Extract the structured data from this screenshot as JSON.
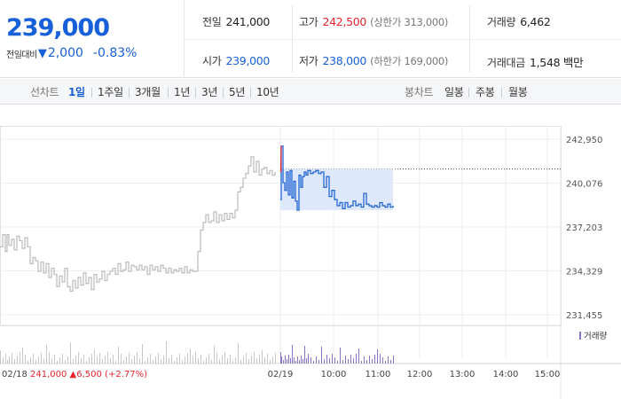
{
  "quote": {
    "price": "239,000",
    "change_label": "전일대비",
    "change_arrow": "▼",
    "change_amount": "2,000",
    "change_rate": "-0.83%",
    "prev_close_label": "전일",
    "prev_close": "241,000",
    "open_label": "시가",
    "open": "239,000",
    "high_label": "고가",
    "high": "242,500",
    "upper_limit": "(상한가 313,000)",
    "low_label": "저가",
    "low": "238,000",
    "lower_limit": "(하한가 169,000)",
    "volume_label": "거래량",
    "volume": "6,462",
    "trade_value_label": "거래대금",
    "trade_value": "1,548 백만"
  },
  "toolbar": {
    "line_chart_label": "선차트",
    "periods": [
      "1일",
      "1주일",
      "3개월",
      "1년",
      "3년",
      "5년",
      "10년"
    ],
    "active_period": "1일",
    "candle_chart_label": "봉차트",
    "candle_periods": [
      "일봉",
      "주봉",
      "월봉"
    ]
  },
  "colors": {
    "accent": "#1760d9",
    "up": "#e8242c",
    "down": "#1760d9",
    "prev_day_line": "#bbbbbb",
    "today_line": "#2566d4",
    "band_fill": "#dde9fa"
  },
  "chart_data": {
    "type": "line",
    "ylim": [
      231455,
      242950
    ],
    "y_ticks": [
      "242,950",
      "240,076",
      "237,203",
      "234,329",
      "231,455"
    ],
    "x_ticks": [
      "02/19",
      "10:00",
      "11:00",
      "12:00",
      "13:00",
      "14:00",
      "15:00"
    ],
    "prev_day_label": "02/18",
    "prev_day_close": "241,000",
    "prev_day_change_arrow": "▲",
    "prev_day_change": "6,500",
    "prev_day_change_rate": "(+2.77%)",
    "volume_legend": "거래량",
    "reference_line": 241000,
    "series": [
      {
        "x": [
          0,
          3,
          6,
          8,
          10,
          13,
          16,
          19,
          22,
          25,
          28,
          31,
          34,
          37,
          40,
          43,
          46,
          49,
          52,
          55,
          58,
          61,
          64,
          67,
          70,
          73,
          76,
          79,
          82,
          85,
          88,
          91,
          94,
          97,
          100,
          103,
          106,
          109,
          112,
          115,
          118,
          121,
          124,
          127,
          130,
          133,
          136,
          139,
          142,
          145,
          148,
          151,
          154,
          157,
          160,
          163,
          166,
          169,
          172,
          175,
          178,
          181,
          184,
          187,
          190,
          193,
          196,
          199,
          202,
          205,
          208,
          211,
          214,
          217,
          220,
          223,
          226,
          229,
          232,
          235,
          238,
          241,
          244,
          247,
          250,
          253,
          256,
          259,
          262,
          265,
          268,
          271,
          274,
          277,
          280,
          283,
          286,
          289,
          292,
          295,
          298,
          301,
          304,
          307,
          310
        ],
        "values": [
          235900,
          236700,
          235600,
          236700,
          236000,
          236400,
          235700,
          236600,
          236300,
          235800,
          236500,
          235900,
          234800,
          235200,
          235000,
          234300,
          234900,
          234200,
          234800,
          233900,
          234500,
          234100,
          233300,
          234000,
          233600,
          234500,
          233300,
          233000,
          233700,
          233200,
          233900,
          233400,
          234200,
          233500,
          233900,
          233100,
          234100,
          233600,
          233800,
          234300,
          233700,
          234100,
          234300,
          234500,
          234100,
          234800,
          234300,
          234400,
          234900,
          234300,
          234700,
          234600,
          234400,
          234700,
          234400,
          234600,
          234100,
          234700,
          234400,
          234600,
          234300,
          234700,
          234500,
          234200,
          234500,
          234200,
          234400,
          234300,
          234500,
          234200,
          234600,
          234200,
          234400,
          234300,
          234300,
          235600,
          237000,
          237500,
          238000,
          237500,
          237600,
          238200,
          237500,
          238000,
          237600,
          238100,
          237700,
          238100,
          237800,
          238300,
          239500,
          239800,
          240400,
          240700,
          241200,
          241800,
          240800,
          241500,
          240600,
          241000,
          241100,
          240700,
          240900,
          240600,
          240800
        ]
      },
      {
        "x": [
          316,
          317,
          319,
          321,
          323,
          325,
          327,
          329,
          331,
          333,
          335,
          337,
          339,
          341,
          343,
          345,
          347,
          350,
          353,
          356,
          359,
          362,
          365,
          368,
          371,
          374,
          377,
          380,
          383,
          386,
          389,
          392,
          395,
          398,
          401,
          404,
          407,
          410,
          413,
          416,
          419,
          422,
          425,
          428,
          431,
          434,
          437,
          440,
          443
        ],
        "values": [
          239000,
          242500,
          240100,
          239600,
          240800,
          239300,
          240900,
          239100,
          240200,
          238900,
          238300,
          240600,
          239800,
          240500,
          240800,
          240600,
          240900,
          240700,
          240800,
          240900,
          240700,
          240800,
          239800,
          240500,
          239200,
          239600,
          239000,
          238600,
          238800,
          238400,
          238800,
          238500,
          238600,
          238900,
          238600,
          238700,
          238500,
          239400,
          238700,
          238600,
          238500,
          238600,
          238500,
          238800,
          238600,
          238500,
          238700,
          238500,
          238600
        ]
      }
    ]
  }
}
